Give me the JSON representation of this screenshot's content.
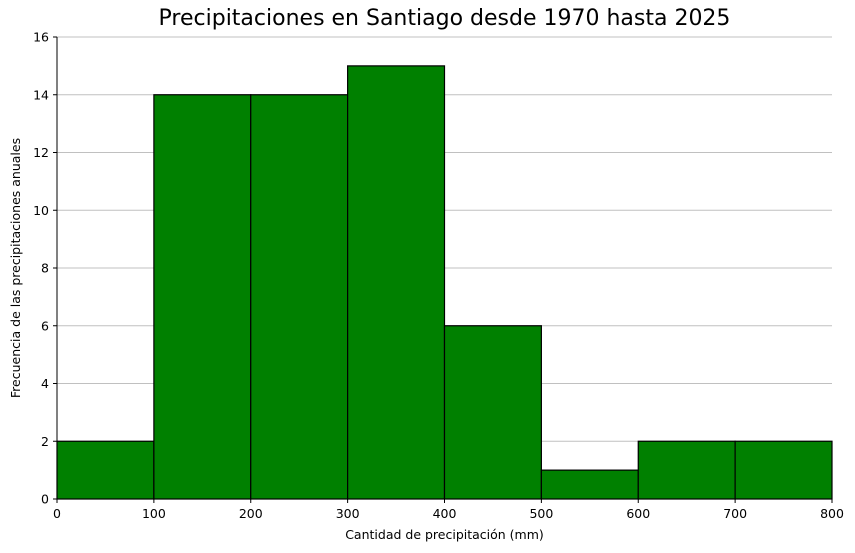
{
  "chart_data": {
    "type": "bar",
    "title": "Precipitaciones en Santiago desde 1970 hasta 2025",
    "xlabel": "Cantidad de precipitación (mm)",
    "ylabel": "Frecuencia de las precipitaciones anuales",
    "xlim": [
      0,
      800
    ],
    "ylim": [
      0,
      16
    ],
    "xticks": [
      0,
      100,
      200,
      300,
      400,
      500,
      600,
      700,
      800
    ],
    "yticks": [
      0,
      2,
      4,
      6,
      8,
      10,
      12,
      14,
      16
    ],
    "bins": [
      {
        "start": 0,
        "end": 100,
        "count": 2
      },
      {
        "start": 100,
        "end": 200,
        "count": 14
      },
      {
        "start": 200,
        "end": 300,
        "count": 14
      },
      {
        "start": 300,
        "end": 400,
        "count": 15
      },
      {
        "start": 400,
        "end": 500,
        "count": 6
      },
      {
        "start": 500,
        "end": 600,
        "count": 1
      },
      {
        "start": 600,
        "end": 700,
        "count": 2
      },
      {
        "start": 700,
        "end": 800,
        "count": 2
      }
    ],
    "bar_color": "#008000",
    "edge_color": "#000000",
    "grid": "horizontal"
  }
}
